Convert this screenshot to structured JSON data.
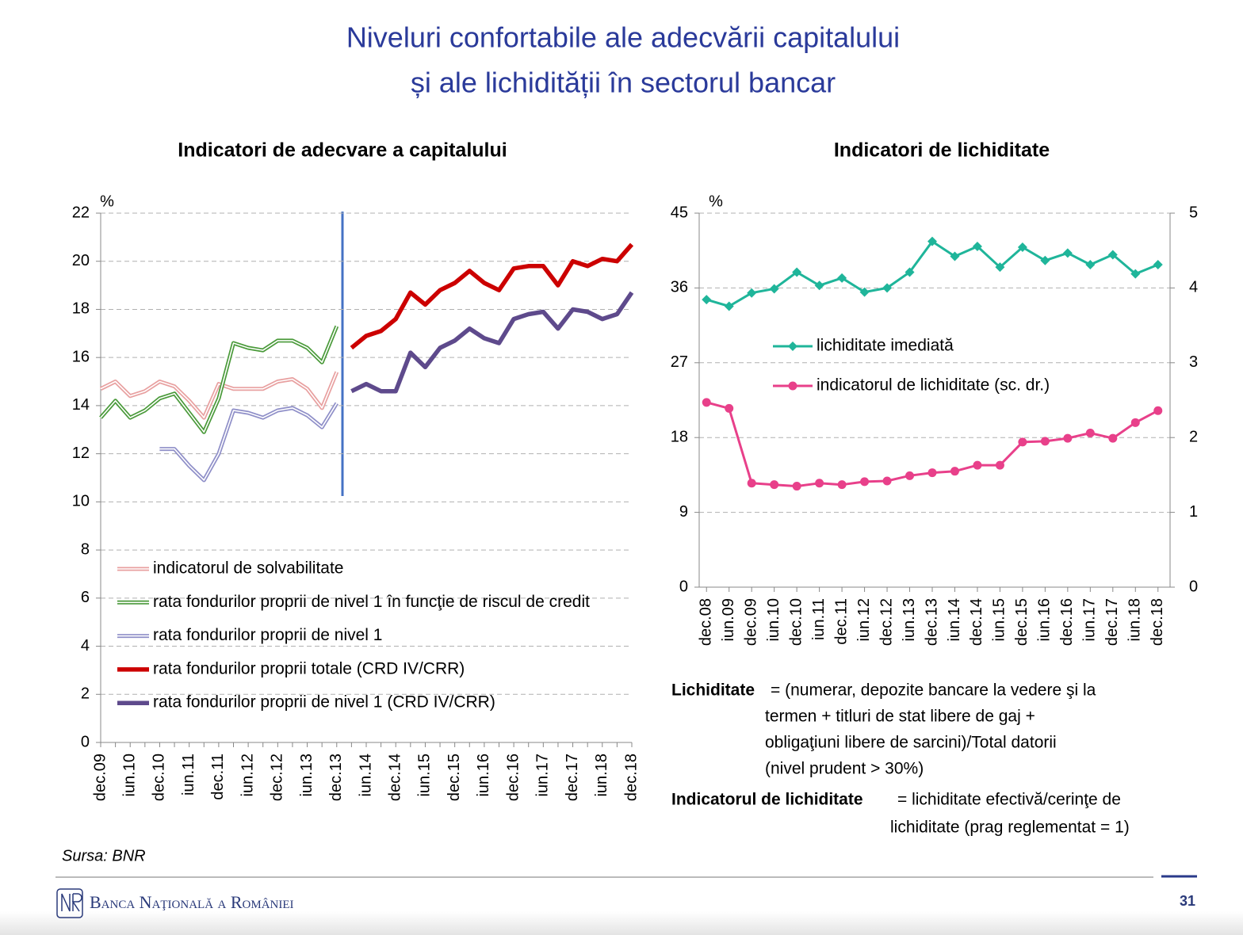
{
  "title": [
    "Niveluri confortabile ale adecvării capitalului",
    "și ale lichidității în sectorul bancar"
  ],
  "chart_data": [
    {
      "type": "line",
      "title": "Indicatori de adecvare a capitalului",
      "ylabel": "%",
      "categories": [
        "dec.09",
        null,
        "iun.10",
        null,
        "dec.10",
        null,
        "iun.11",
        null,
        "dec.11",
        null,
        "iun.12",
        null,
        "dec.12",
        null,
        "iun.13",
        null,
        "dec.13",
        null,
        "iun.14",
        null,
        "dec.14",
        null,
        "iun.15",
        null,
        "dec.15",
        null,
        "iun.16",
        null,
        "dec.16",
        null,
        "iun.17",
        null,
        "dec.17",
        null,
        "iun.18",
        null,
        "dec.18"
      ],
      "ylim": [
        0,
        22
      ],
      "yticks": [
        0,
        2,
        4,
        6,
        8,
        10,
        12,
        14,
        16,
        18,
        20,
        22
      ],
      "grid": true,
      "legend": "lower left",
      "series": [
        {
          "name": "indicatorul de solvabilitate",
          "color": "#e8a0a0",
          "style": "double",
          "values": [
            14.7,
            15.0,
            14.4,
            14.6,
            15.0,
            14.8,
            14.2,
            13.5,
            14.9,
            14.7,
            14.7,
            14.7,
            15.0,
            15.1,
            14.7,
            13.9,
            15.4,
            null,
            null,
            null,
            null,
            null,
            null,
            null,
            null,
            null,
            null,
            null,
            null,
            null,
            null,
            null,
            null,
            null,
            null,
            null,
            null
          ]
        },
        {
          "name": "rata fondurilor proprii de nivel 1 în funcţie de riscul de credit",
          "color": "#4a9a3a",
          "style": "double",
          "values": [
            13.5,
            14.2,
            13.5,
            13.8,
            14.3,
            14.5,
            13.7,
            12.9,
            14.3,
            16.6,
            16.4,
            16.3,
            16.7,
            16.7,
            16.4,
            15.8,
            17.3,
            null,
            null,
            null,
            null,
            null,
            null,
            null,
            null,
            null,
            null,
            null,
            null,
            null,
            null,
            null,
            null,
            null,
            null,
            null,
            null
          ]
        },
        {
          "name": "rata fondurilor proprii de nivel 1",
          "color": "#8f8fc8",
          "style": "double",
          "values": [
            null,
            null,
            null,
            null,
            12.2,
            12.2,
            11.5,
            10.9,
            12.0,
            13.8,
            13.7,
            13.5,
            13.8,
            13.9,
            13.6,
            13.1,
            14.1,
            null,
            null,
            null,
            null,
            null,
            null,
            null,
            null,
            null,
            null,
            null,
            null,
            null,
            null,
            null,
            null,
            null,
            null,
            null,
            null
          ]
        },
        {
          "name": "rata fondurilor proprii totale (CRD IV/CRR)",
          "color": "#cc0000",
          "style": "thick",
          "values": [
            null,
            null,
            null,
            null,
            null,
            null,
            null,
            null,
            null,
            null,
            null,
            null,
            null,
            null,
            null,
            null,
            null,
            16.4,
            16.9,
            17.1,
            17.6,
            18.7,
            18.2,
            18.8,
            19.1,
            19.6,
            19.1,
            18.8,
            19.7,
            19.8,
            19.8,
            19.0,
            20.0,
            19.8,
            20.1,
            20.0,
            20.7
          ]
        },
        {
          "name": "rata fondurilor proprii de nivel 1 (CRD IV/CRR)",
          "color": "#5e4a8c",
          "style": "thick",
          "values": [
            null,
            null,
            null,
            null,
            null,
            null,
            null,
            null,
            null,
            null,
            null,
            null,
            null,
            null,
            null,
            null,
            null,
            14.6,
            14.9,
            14.6,
            14.6,
            16.2,
            15.6,
            16.4,
            16.7,
            17.2,
            16.8,
            16.6,
            17.6,
            17.8,
            17.9,
            17.2,
            18.0,
            17.9,
            17.6,
            17.8,
            18.7
          ]
        }
      ]
    },
    {
      "type": "line",
      "title": "Indicatori de lichiditate",
      "ylabel": "%",
      "categories": [
        "dec.08",
        "iun.09",
        "dec.09",
        "iun.10",
        "dec.10",
        "iun.11",
        "dec.11",
        "iun.12",
        "dec.12",
        "iun.13",
        "dec.13",
        "iun.14",
        "dec.14",
        "iun.15",
        "dec.15",
        "iun.16",
        "dec.16",
        "iun.17",
        "dec.17",
        "iun.18",
        "dec.18"
      ],
      "ylim": [
        0,
        45
      ],
      "yticks": [
        0,
        9,
        18,
        27,
        36,
        45
      ],
      "y2lim": [
        0,
        5
      ],
      "y2ticks": [
        0,
        1,
        2,
        3,
        4,
        5
      ],
      "grid": true,
      "legend": "center left",
      "series": [
        {
          "name": "lichiditate imediată",
          "color": "#1fb59a",
          "style": "thin",
          "marker": "diamond",
          "values": [
            34.6,
            33.8,
            35.4,
            35.9,
            37.9,
            36.3,
            37.2,
            35.5,
            36.0,
            37.9,
            41.6,
            39.8,
            41.0,
            38.5,
            40.9,
            39.3,
            40.2,
            38.8,
            40.0,
            37.7,
            38.8
          ]
        },
        {
          "name": "indicatorul de lichiditate (sc. dr.)",
          "color": "#e8408a",
          "style": "thin",
          "marker": "circle",
          "axis": "y2",
          "values": [
            2.47,
            2.39,
            1.39,
            1.37,
            1.35,
            1.39,
            1.37,
            1.41,
            1.42,
            1.49,
            1.53,
            1.55,
            1.63,
            1.63,
            1.94,
            1.95,
            1.99,
            2.06,
            1.99,
            2.2,
            2.36
          ]
        }
      ]
    }
  ],
  "notes": [
    {
      "term": "Lichiditate",
      "lines": [
        "= (numerar,  depozite bancare la vedere şi la",
        "termen  + titluri de stat libere de gaj +",
        "obligaţiuni libere de sarcini)/Total datorii",
        "(nivel prudent  > 30%)"
      ]
    },
    {
      "term": "Indicatorul de lichiditate",
      "lines": [
        "= lichiditate efectivă/cerinţe de",
        "lichiditate (prag reglementat = 1)"
      ]
    }
  ],
  "source": "Sursa: BNR",
  "footer": {
    "bank": "Banca Naţională a României",
    "page": "31"
  }
}
